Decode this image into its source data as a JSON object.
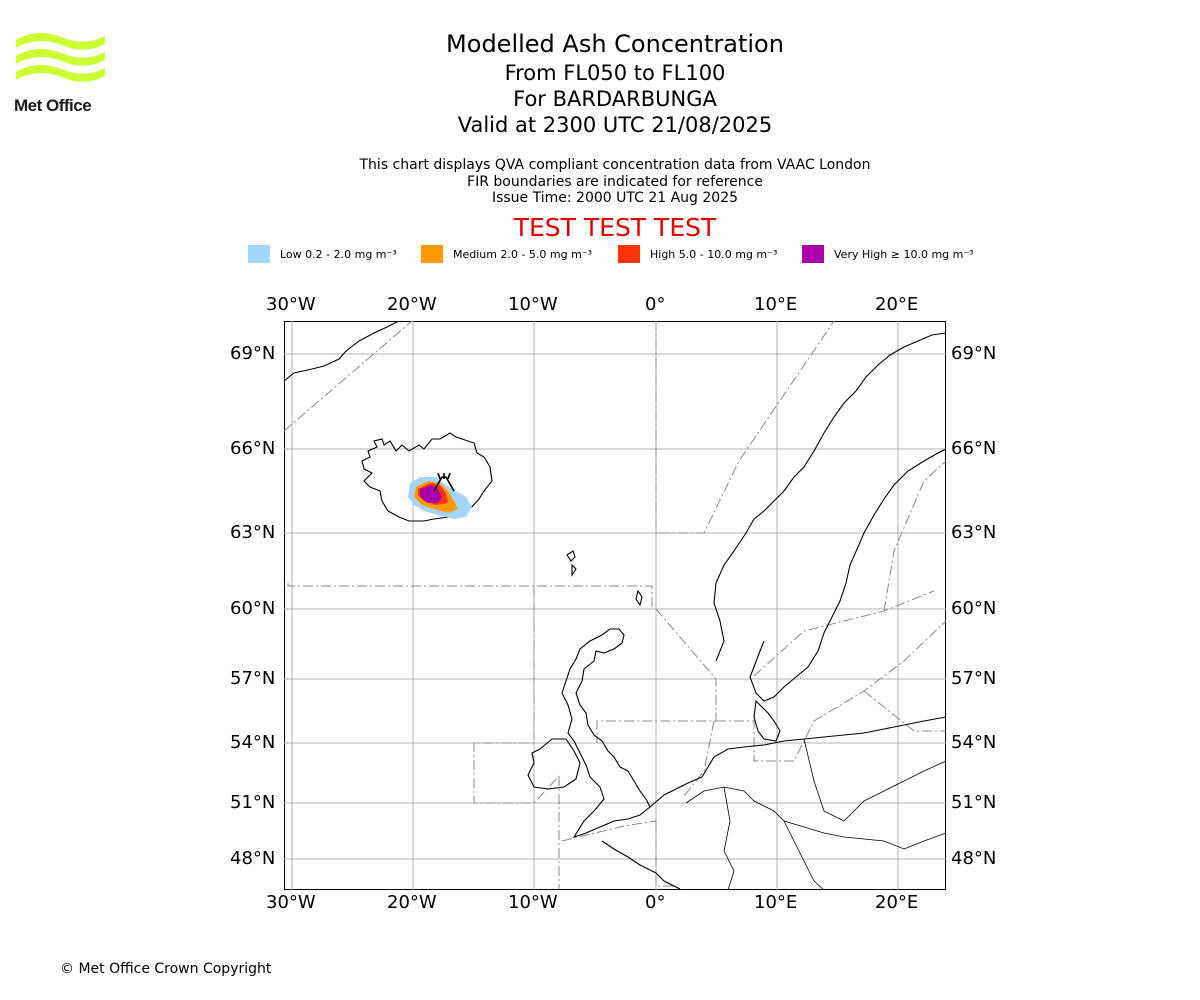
{
  "logo": {
    "text": "Met Office",
    "wave_color": "#ccff33"
  },
  "title": {
    "line1": "Modelled Ash Concentration",
    "line2": "From FL050 to FL100",
    "line3": "For BARDARBUNGA",
    "line4": "Valid at 2300 UTC 21/08/2025"
  },
  "info": {
    "line1": "This chart displays QVA compliant concentration data from VAAC London",
    "line2": "FIR boundaries are indicated for reference",
    "line3": "Issue Time: 2000 UTC 21 Aug 2025"
  },
  "test_banner": "TEST TEST TEST",
  "legend": [
    {
      "label": "Low 0.2 - 2.0 mg m⁻³",
      "color": "#a3d6ff"
    },
    {
      "label": "Medium 2.0 - 5.0 mg m⁻³",
      "color": "#ff9900"
    },
    {
      "label": "High 5.0 - 10.0 mg m⁻³",
      "color": "#ff3300"
    },
    {
      "label": "Very High ≥ 10.0 mg m⁻³",
      "color": "#aa00aa"
    }
  ],
  "map": {
    "lon_labels": [
      "30°W",
      "20°W",
      "10°W",
      "0°",
      "10°E",
      "20°E"
    ],
    "lat_labels": [
      "69°N",
      "66°N",
      "63°N",
      "60°N",
      "57°N",
      "54°N",
      "51°N",
      "48°N"
    ],
    "volcano": "BARDARBUNGA",
    "volcano_symbol": "volcano-icon"
  },
  "footer": "© Met Office Crown Copyright"
}
